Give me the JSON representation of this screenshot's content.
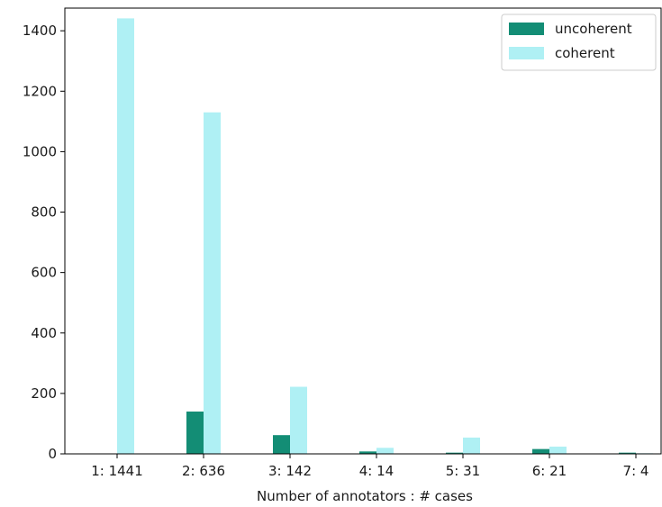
{
  "chart_data": {
    "type": "bar",
    "title": "",
    "xlabel": "Number of annotators : # cases",
    "ylabel": "",
    "categories": [
      "1: 1441",
      "2: 636",
      "3: 142",
      "4: 14",
      "5: 31",
      "6: 21",
      "7: 4"
    ],
    "series": [
      {
        "name": "uncoherent",
        "color": "#138d75",
        "values": [
          0,
          140,
          62,
          8,
          4,
          16,
          4
        ]
      },
      {
        "name": "coherent",
        "color": "#aff0f4",
        "values": [
          1441,
          1130,
          222,
          20,
          54,
          24,
          2
        ]
      }
    ],
    "ylim": [
      0,
      1475
    ],
    "yticks": [
      0,
      200,
      400,
      600,
      800,
      1000,
      1200,
      1400
    ],
    "legend": "top-right",
    "grid": false
  }
}
